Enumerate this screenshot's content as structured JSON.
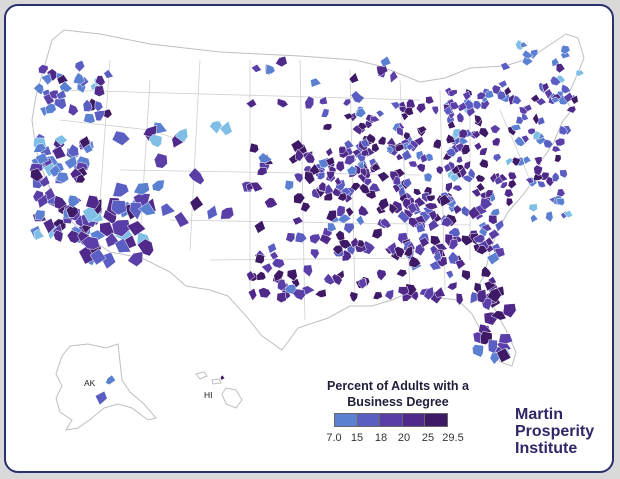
{
  "legend": {
    "title_line1": "Percent of Adults with a",
    "title_line2": "Business Degree",
    "ticks": [
      "7.0",
      "15",
      "18",
      "20",
      "25",
      "29.5"
    ],
    "colors": [
      "#7fbfe6",
      "#5b7fd1",
      "#5a5ec2",
      "#5a3fa8",
      "#4f2a8a",
      "#3e1a66"
    ]
  },
  "inset_labels": {
    "alaska": "AK",
    "hawaii": "HI"
  },
  "brand": {
    "line1": "Martin",
    "line2": "Prosperity",
    "line3": "Institute"
  },
  "colors": {
    "frame": "#2b2f6b",
    "background": "#d9d9d9",
    "land": "#ffffff",
    "state_border": "#bfbfbf"
  }
}
